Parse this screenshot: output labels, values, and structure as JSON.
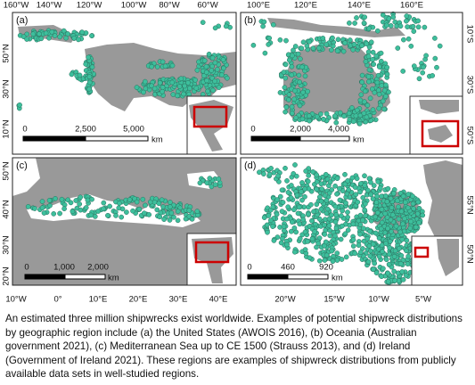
{
  "panels": [
    {
      "label": "(a)",
      "top_ticks": [
        "160°W",
        "140°W",
        "120°W",
        "100°W",
        "80°W",
        "60°W"
      ],
      "side_ticks": [
        "50°N",
        "30°N",
        "10°N"
      ],
      "scale": {
        "labels": [
          "0",
          "2,500",
          "5,000"
        ],
        "unit": "km"
      }
    },
    {
      "label": "(b)",
      "top_ticks": [
        "100°E",
        "120°E",
        "140°E",
        "160°E"
      ],
      "side_ticks": [
        "10°S",
        "30°S",
        "50°S"
      ],
      "scale": {
        "labels": [
          "0",
          "2,000",
          "4,000"
        ],
        "unit": "km"
      }
    },
    {
      "label": "(c)",
      "bottom_ticks": [
        "10°W",
        "0°",
        "10°E",
        "20°E",
        "30°E",
        "40°E"
      ],
      "side_ticks": [
        "50°N",
        "40°N",
        "30°N",
        "20°N"
      ],
      "scale": {
        "labels": [
          "0",
          "1,000",
          "2,000"
        ],
        "unit": "km"
      }
    },
    {
      "label": "(d)",
      "bottom_ticks": [
        "20°W",
        "15°W",
        "10°W",
        "5°W"
      ],
      "side_ticks": [
        "55°N",
        "50°N"
      ],
      "scale": {
        "labels": [
          "0",
          "460",
          "920"
        ],
        "unit": "km"
      }
    }
  ],
  "caption": "An estimated three million shipwrecks exist worldwide. Examples of potential shipwreck distributions by geographic region include (a) the United States (AWOIS 2016), (b) Oceania (Australian government 2021), (c) Mediterranean Sea up to CE 1500 (Strauss 2013), and (d) Ireland (Government of Ireland 2021). These regions are examples of shipwreck distributions from publicly available data sets in well-studied regions."
}
